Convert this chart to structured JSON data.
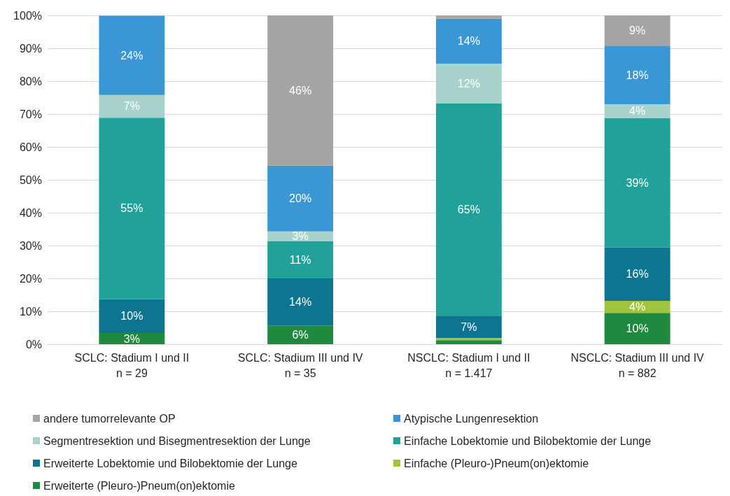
{
  "chart_data": {
    "type": "bar",
    "stacked": true,
    "categories": [
      "SCLC: Stadium I und II\nn = 29",
      "SCLC: Stadium III und IV\nn = 35",
      "NSCLC: Stadium I und II\nn = 1.417",
      "NSCLC: Stadium III und IV\nn = 882"
    ],
    "series": [
      {
        "name": "Erweiterte (Pleuro-)Pneum(on)ektomie",
        "color": "#1f8a3f",
        "values": [
          3.4,
          5.7,
          1.2,
          9.5
        ],
        "value_labels": [
          "3%",
          "6%",
          null,
          "10%"
        ]
      },
      {
        "name": "Einfache (Pleuro-)Pneum(on)ektomie",
        "color": "#a2c43c",
        "values": [
          null,
          null,
          0.7,
          3.7
        ],
        "value_labels": [
          null,
          null,
          null,
          "4%"
        ]
      },
      {
        "name": "Erweiterte Lobektomie und Bilobektomie der Lunge",
        "color": "#0e7590",
        "values": [
          10.3,
          14.3,
          6.6,
          16.2
        ],
        "value_labels": [
          "10%",
          "14%",
          "7%",
          "16%"
        ]
      },
      {
        "name": "Einfache Lobektomie und Bilobektomie der Lunge",
        "color": "#21a199",
        "values": [
          55.2,
          11.4,
          64.8,
          39.4
        ],
        "value_labels": [
          "55%",
          "11%",
          "65%",
          "39%"
        ]
      },
      {
        "name": "Segmentresektion und Bisegmentresektion der Lunge",
        "color": "#a8d3cc",
        "values": [
          6.9,
          2.9,
          12.0,
          4.2
        ],
        "value_labels": [
          "7%",
          "3%",
          "12%",
          "4%"
        ]
      },
      {
        "name": "Atypische Lungenresektion",
        "color": "#3a96d4",
        "values": [
          24.1,
          20.0,
          13.7,
          17.8
        ],
        "value_labels": [
          "24%",
          "20%",
          "14%",
          "18%"
        ]
      },
      {
        "name": "andere tumorrelevante OP",
        "color": "#a5a5a5",
        "values": [
          null,
          45.7,
          1.0,
          9.2
        ],
        "value_labels": [
          null,
          "46%",
          null,
          "9%"
        ]
      }
    ],
    "ylim": [
      0,
      100
    ],
    "yticks": [
      {
        "value": 0,
        "label": "0%"
      },
      {
        "value": 10,
        "label": "10%"
      },
      {
        "value": 20,
        "label": "20%"
      },
      {
        "value": 30,
        "label": "30%"
      },
      {
        "value": 40,
        "label": "40%"
      },
      {
        "value": 50,
        "label": "50%"
      },
      {
        "value": 60,
        "label": "60%"
      },
      {
        "value": 70,
        "label": "70%"
      },
      {
        "value": 80,
        "label": "80%"
      },
      {
        "value": 90,
        "label": "90%"
      },
      {
        "value": 100,
        "label": "100%"
      }
    ],
    "grid": "y",
    "legend": "bottom"
  }
}
